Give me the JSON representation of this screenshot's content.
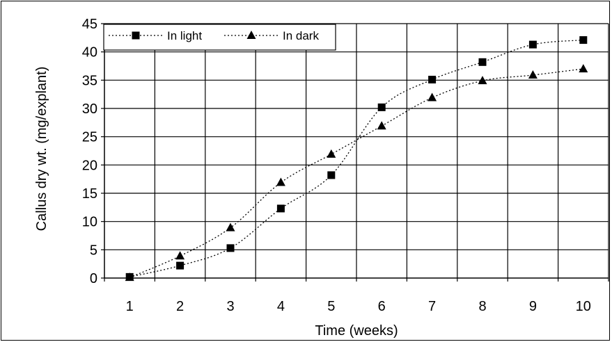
{
  "chart_data": {
    "type": "line",
    "title": "",
    "xlabel": "Time (weeks)",
    "ylabel": "Callus dry wt. (mg/explant)",
    "x": [
      1,
      2,
      3,
      4,
      5,
      6,
      7,
      8,
      9,
      10
    ],
    "x_tick_labels": [
      "1",
      "2",
      "3",
      "4",
      "5",
      "6",
      "7",
      "8",
      "9",
      "10"
    ],
    "ylim": [
      0,
      45
    ],
    "y_ticks": [
      0,
      5,
      10,
      15,
      20,
      25,
      30,
      35,
      40,
      45
    ],
    "y_tick_labels": [
      "0",
      "5",
      "10",
      "15",
      "20",
      "25",
      "30",
      "35",
      "40",
      "45"
    ],
    "grid": true,
    "legend_position": "top-left",
    "series": [
      {
        "name": "In light",
        "marker": "square",
        "line_style": "dotted",
        "color": "#000000",
        "values": [
          0.2,
          2.2,
          5.3,
          12.3,
          18.2,
          30.2,
          35.1,
          38.2,
          41.3,
          42.1
        ]
      },
      {
        "name": "In dark",
        "marker": "triangle",
        "line_style": "dotted",
        "color": "#000000",
        "values": [
          0.1,
          3.9,
          8.9,
          16.9,
          21.9,
          26.9,
          31.9,
          34.9,
          35.9,
          37.0
        ]
      }
    ]
  }
}
